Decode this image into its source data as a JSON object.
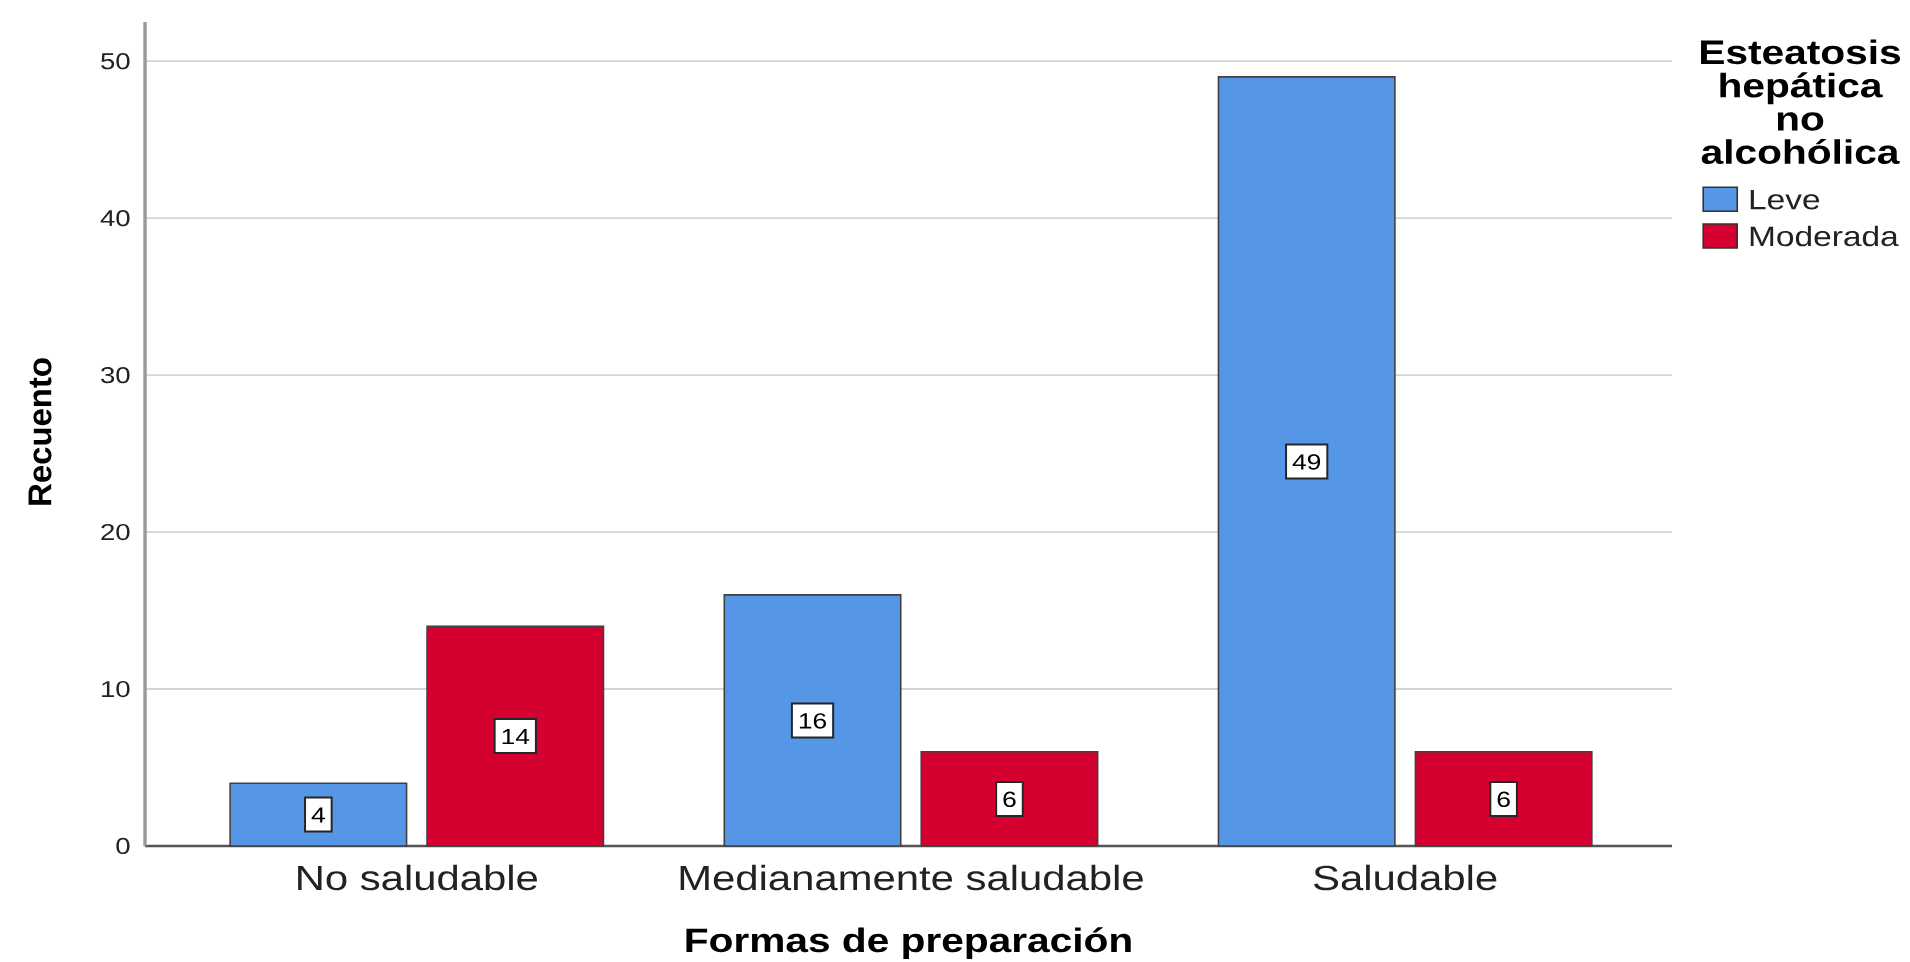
{
  "chart_data": {
    "type": "bar",
    "xlabel": "Formas de preparación",
    "ylabel": "Recuento",
    "legend_title": "Esteatosis hepática no alcohólica",
    "categories": [
      "No saludable",
      "Medianamente saludable",
      "Saludable"
    ],
    "series": [
      {
        "name": "Leve",
        "color": "#5696e6",
        "values": [
          4,
          16,
          49
        ]
      },
      {
        "name": "Moderada",
        "color": "#d4002f",
        "values": [
          14,
          6,
          6
        ]
      }
    ],
    "ylim": [
      0,
      52.5
    ],
    "yticks": [
      0,
      10,
      20,
      30,
      40,
      50
    ],
    "grid": "y",
    "legend": "top right",
    "data_labels": true
  }
}
